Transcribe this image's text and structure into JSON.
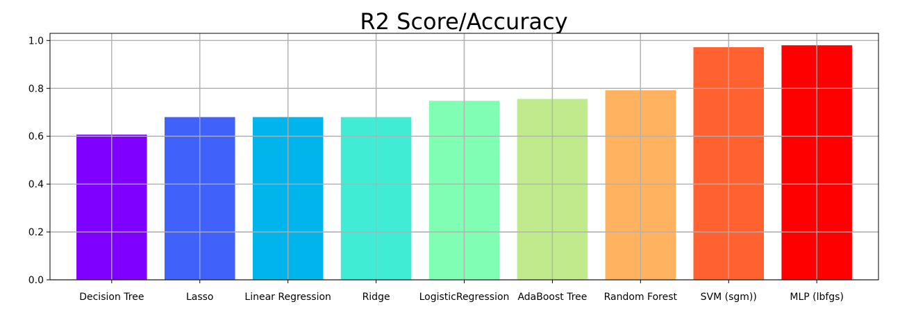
{
  "chart_data": {
    "type": "bar",
    "title": "R2 Score/Accuracy",
    "xlabel": "",
    "ylabel": "",
    "categories": [
      "Decision Tree",
      "Lasso",
      "Linear Regression",
      "Ridge",
      "LogisticRegression",
      "AdaBoost Tree",
      "Random Forest",
      "SVM (sgm))",
      "MLP (lbfgs)"
    ],
    "values": [
      0.607,
      0.68,
      0.68,
      0.68,
      0.748,
      0.756,
      0.792,
      0.972,
      0.98
    ],
    "colors": [
      "#8000ff",
      "#4062fa",
      "#00b5eb",
      "#40ecd4",
      "#80ffb4",
      "#c0eb8d",
      "#ffb360",
      "#ff6230",
      "#ff0000"
    ],
    "ylim": [
      0,
      1.03
    ],
    "yticks": [
      "0.0",
      "0.2",
      "0.4",
      "0.6",
      "0.8",
      "1.0"
    ],
    "grid": true
  }
}
